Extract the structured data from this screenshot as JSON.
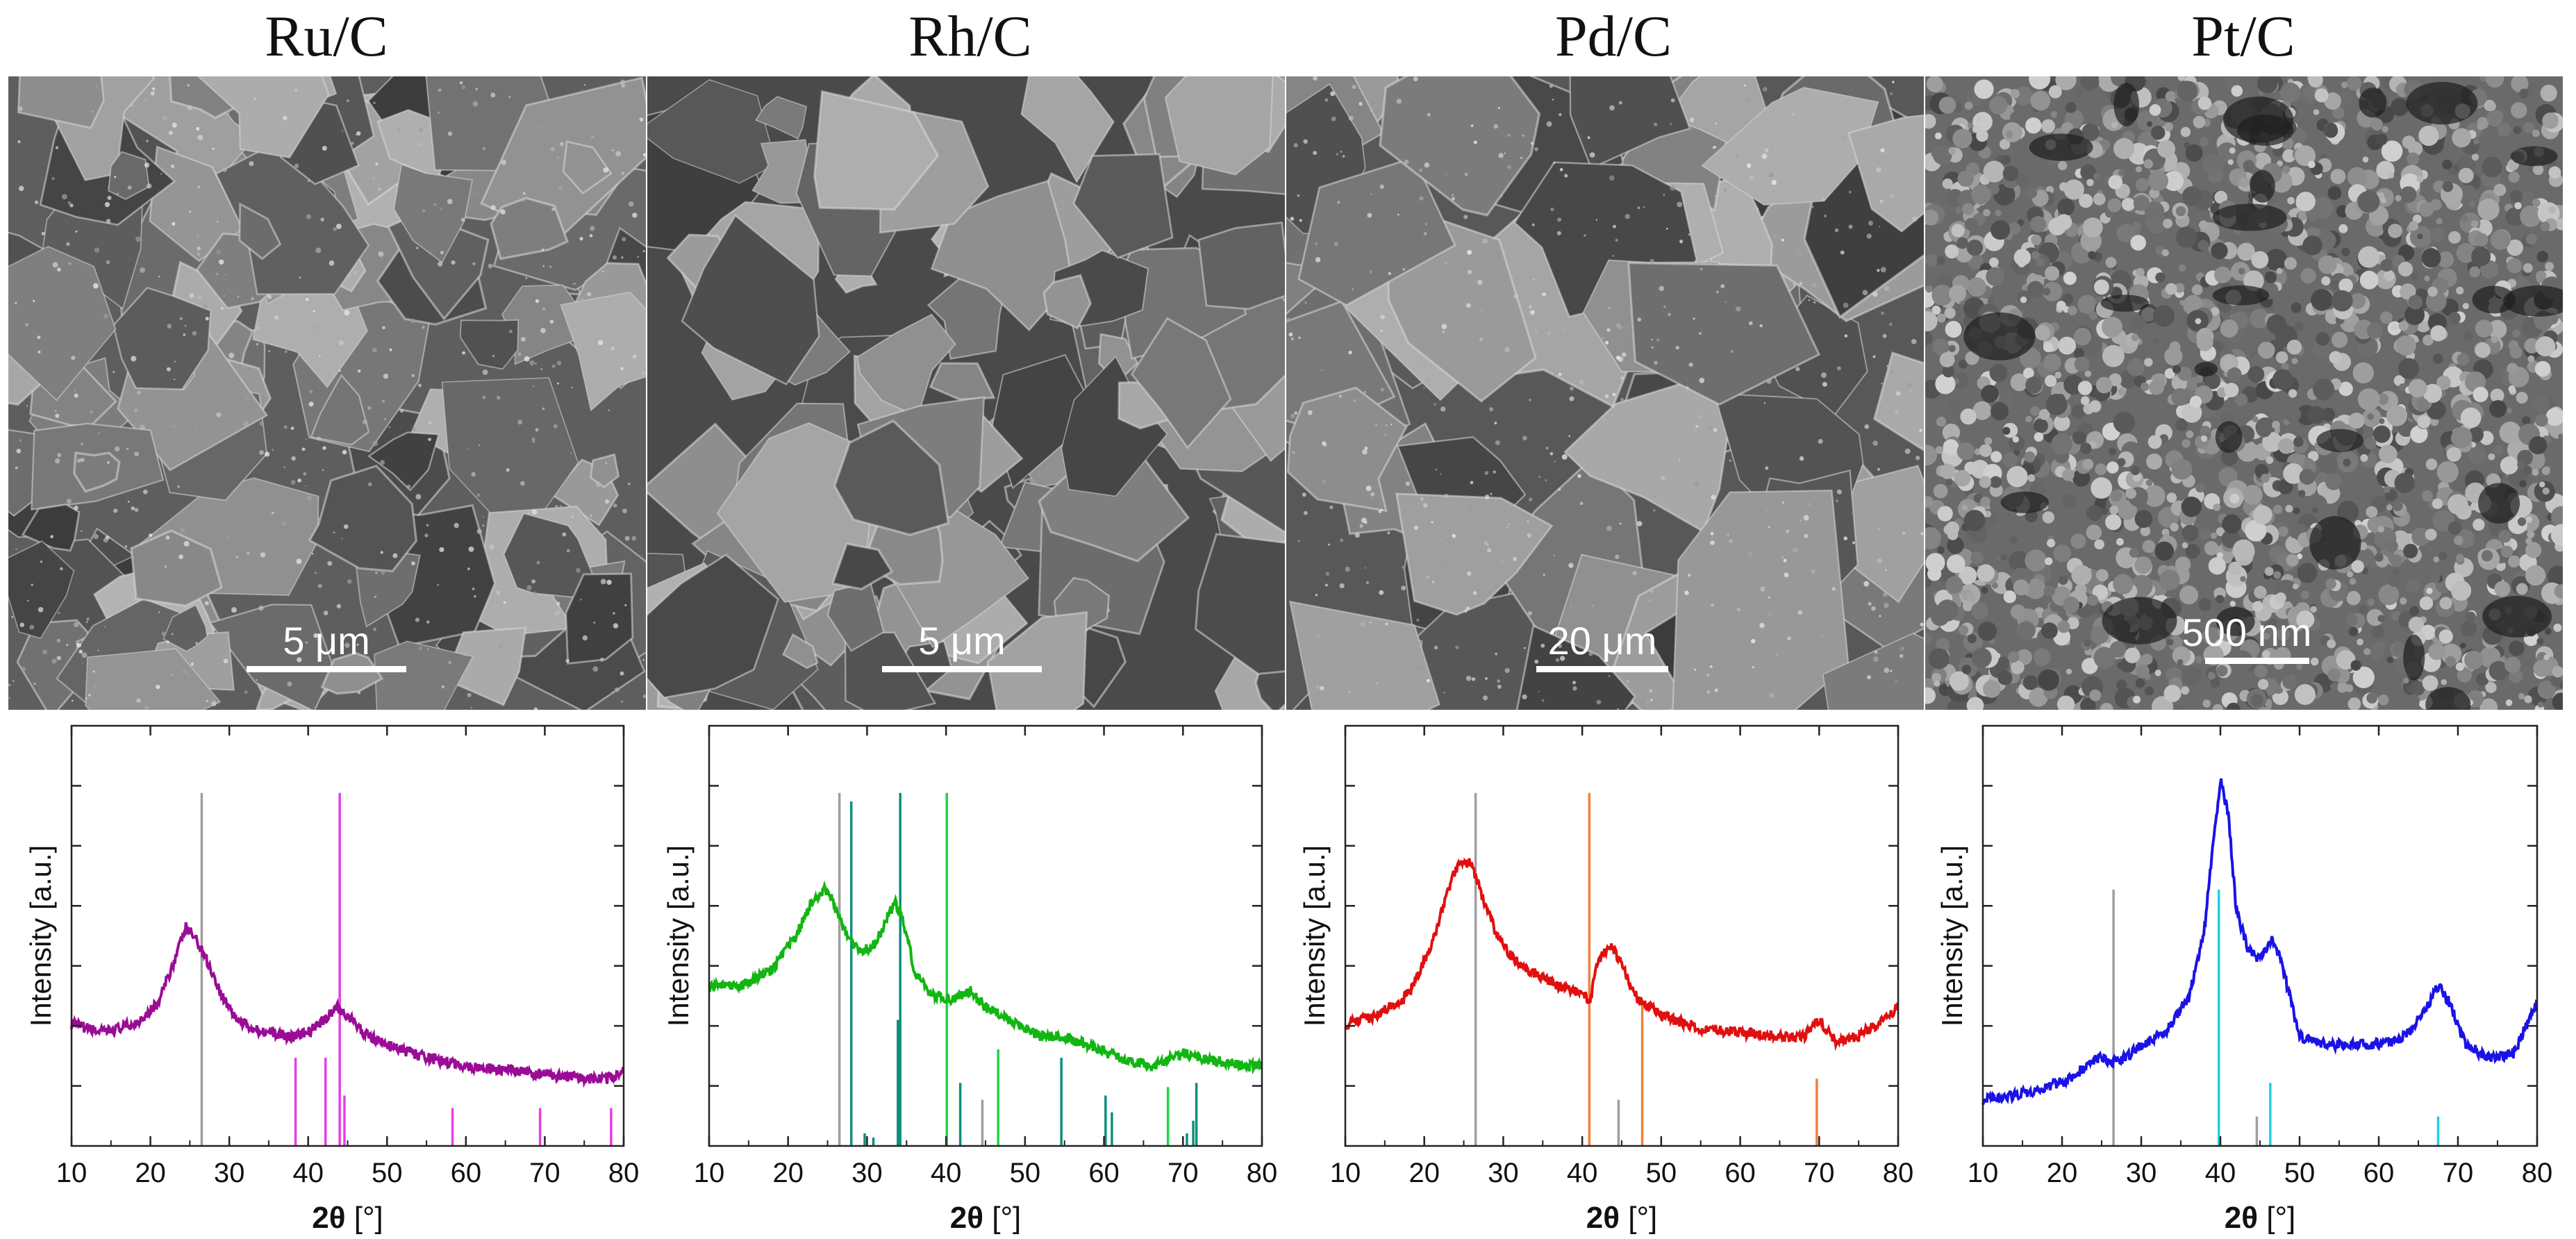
{
  "panels": [
    {
      "title": "Ru/C",
      "scale": "5 μm",
      "texture": "flakes-light"
    },
    {
      "title": "Rh/C",
      "scale": "5 μm",
      "texture": "flakes-dark"
    },
    {
      "title": "Pd/C",
      "scale": "20 μm",
      "texture": "chunks"
    },
    {
      "title": "Pt/C",
      "scale": "500 nm",
      "texture": "granular"
    }
  ],
  "chart_data": [
    {
      "type": "line",
      "xlabel_bold": "2θ",
      "xlabel_unit": "[°]",
      "ylabel": "Intensity [a.u.]",
      "xlim": [
        10,
        80
      ],
      "xticks": [
        "10",
        "20",
        "30",
        "40",
        "50",
        "60",
        "70",
        "80"
      ],
      "series": [
        {
          "color": "#9a0c96",
          "x": [
            10,
            14,
            18,
            21,
            23,
            24.5,
            25.5,
            27,
            29,
            31,
            33,
            35,
            38,
            40,
            42,
            43.5,
            45,
            47,
            50,
            55,
            60,
            65,
            70,
            75,
            78,
            80
          ],
          "y": [
            0.29,
            0.27,
            0.29,
            0.34,
            0.44,
            0.52,
            0.5,
            0.45,
            0.36,
            0.3,
            0.28,
            0.27,
            0.26,
            0.27,
            0.3,
            0.33,
            0.31,
            0.27,
            0.24,
            0.21,
            0.19,
            0.18,
            0.17,
            0.16,
            0.16,
            0.18
          ]
        }
      ],
      "reference_lines": [
        {
          "x": 26.5,
          "h": 0.84,
          "color": "#9e9e9e"
        },
        {
          "x": 38.4,
          "h": 0.21,
          "color": "#e63ee6"
        },
        {
          "x": 42.2,
          "h": 0.21,
          "color": "#e63ee6"
        },
        {
          "x": 44.0,
          "h": 0.84,
          "color": "#e63ee6"
        },
        {
          "x": 44.6,
          "h": 0.12,
          "color": "#e63ee6"
        },
        {
          "x": 58.3,
          "h": 0.09,
          "color": "#e63ee6"
        },
        {
          "x": 69.4,
          "h": 0.09,
          "color": "#e63ee6"
        },
        {
          "x": 78.4,
          "h": 0.09,
          "color": "#e63ee6"
        }
      ]
    },
    {
      "type": "line",
      "xlabel_bold": "2θ",
      "xlabel_unit": "[°]",
      "ylabel": "Intensity [a.u.]",
      "xlim": [
        10,
        80
      ],
      "xticks": [
        "10",
        "20",
        "30",
        "40",
        "50",
        "60",
        "70",
        "80"
      ],
      "series": [
        {
          "color": "#12b512",
          "x": [
            10,
            14,
            18,
            21,
            23,
            24.5,
            25.5,
            27,
            29,
            31,
            32.5,
            33.5,
            34.5,
            36,
            38,
            41,
            43,
            45,
            48,
            52,
            55,
            58,
            62,
            66,
            70,
            72,
            75,
            78,
            80
          ],
          "y": [
            0.38,
            0.38,
            0.42,
            0.5,
            0.58,
            0.61,
            0.59,
            0.52,
            0.46,
            0.48,
            0.54,
            0.58,
            0.54,
            0.42,
            0.36,
            0.35,
            0.37,
            0.33,
            0.3,
            0.26,
            0.26,
            0.24,
            0.21,
            0.19,
            0.22,
            0.21,
            0.2,
            0.19,
            0.19
          ]
        }
      ],
      "reference_lines": [
        {
          "x": 26.5,
          "h": 0.84,
          "color": "#9e9e9e"
        },
        {
          "x": 28.0,
          "h": 0.82,
          "color": "#0e8f7e"
        },
        {
          "x": 29.7,
          "h": 0.03,
          "color": "#0e8f7e"
        },
        {
          "x": 30.8,
          "h": 0.02,
          "color": "#0e8f7e"
        },
        {
          "x": 33.9,
          "h": 0.3,
          "color": "#0e8f7e"
        },
        {
          "x": 34.2,
          "h": 0.84,
          "color": "#0e8f7e"
        },
        {
          "x": 40.1,
          "h": 0.84,
          "color": "#22d444"
        },
        {
          "x": 41.8,
          "h": 0.15,
          "color": "#0e8f7e"
        },
        {
          "x": 44.6,
          "h": 0.11,
          "color": "#9e9e9e"
        },
        {
          "x": 46.6,
          "h": 0.23,
          "color": "#22d444"
        },
        {
          "x": 54.6,
          "h": 0.21,
          "color": "#0e8f7e"
        },
        {
          "x": 60.2,
          "h": 0.12,
          "color": "#0e8f7e"
        },
        {
          "x": 61.0,
          "h": 0.08,
          "color": "#0e8f7e"
        },
        {
          "x": 68.1,
          "h": 0.14,
          "color": "#22d444"
        },
        {
          "x": 70.5,
          "h": 0.03,
          "color": "#0e8f7e"
        },
        {
          "x": 71.3,
          "h": 0.06,
          "color": "#0e8f7e"
        },
        {
          "x": 71.7,
          "h": 0.15,
          "color": "#0e8f7e"
        }
      ]
    },
    {
      "type": "line",
      "xlabel_bold": "2θ",
      "xlabel_unit": "[°]",
      "ylabel": "Intensity [a.u.]",
      "xlim": [
        10,
        80
      ],
      "xticks": [
        "10",
        "20",
        "30",
        "40",
        "50",
        "60",
        "70",
        "80"
      ],
      "series": [
        {
          "color": "#e01010",
          "x": [
            10,
            14,
            18,
            21,
            23,
            24.5,
            26,
            27,
            29,
            31,
            33,
            35,
            37,
            39,
            41,
            42,
            43.5,
            45,
            47,
            50,
            55,
            60,
            65,
            68,
            70,
            72,
            75,
            78,
            80
          ],
          "y": [
            0.29,
            0.31,
            0.36,
            0.48,
            0.61,
            0.68,
            0.67,
            0.61,
            0.51,
            0.45,
            0.42,
            0.4,
            0.38,
            0.37,
            0.35,
            0.44,
            0.48,
            0.43,
            0.35,
            0.31,
            0.28,
            0.27,
            0.26,
            0.26,
            0.3,
            0.25,
            0.26,
            0.3,
            0.33
          ]
        }
      ],
      "reference_lines": [
        {
          "x": 26.5,
          "h": 0.84,
          "color": "#9e9e9e"
        },
        {
          "x": 40.9,
          "h": 0.84,
          "color": "#f08040"
        },
        {
          "x": 44.6,
          "h": 0.11,
          "color": "#9e9e9e"
        },
        {
          "x": 47.6,
          "h": 0.34,
          "color": "#f08040"
        },
        {
          "x": 69.7,
          "h": 0.16,
          "color": "#f08040"
        }
      ]
    },
    {
      "type": "line",
      "xlabel_bold": "2θ",
      "xlabel_unit": "[°]",
      "ylabel": "Intensity [a.u.]",
      "xlim": [
        10,
        80
      ],
      "xticks": [
        "10",
        "20",
        "30",
        "40",
        "50",
        "60",
        "70",
        "80"
      ],
      "series": [
        {
          "color": "#1a12e6",
          "x": [
            10,
            14,
            18,
            21,
            23,
            24.5,
            26,
            28,
            30,
            33,
            36,
            38,
            39,
            40,
            41,
            42,
            43.5,
            45,
            46.5,
            47.5,
            50,
            54,
            58,
            62,
            64,
            66,
            67.5,
            69,
            71,
            74,
            77,
            80
          ],
          "y": [
            0.11,
            0.12,
            0.14,
            0.16,
            0.19,
            0.21,
            0.2,
            0.21,
            0.24,
            0.27,
            0.35,
            0.52,
            0.7,
            0.87,
            0.79,
            0.56,
            0.47,
            0.44,
            0.49,
            0.45,
            0.26,
            0.24,
            0.24,
            0.25,
            0.27,
            0.33,
            0.38,
            0.34,
            0.24,
            0.21,
            0.22,
            0.34
          ]
        }
      ],
      "reference_lines": [
        {
          "x": 26.5,
          "h": 0.61,
          "color": "#9e9e9e"
        },
        {
          "x": 39.8,
          "h": 0.61,
          "color": "#1fd0e0"
        },
        {
          "x": 44.6,
          "h": 0.07,
          "color": "#9e9e9e"
        },
        {
          "x": 46.3,
          "h": 0.15,
          "color": "#1fd0e0"
        },
        {
          "x": 67.5,
          "h": 0.07,
          "color": "#1fd0e0"
        }
      ]
    }
  ]
}
